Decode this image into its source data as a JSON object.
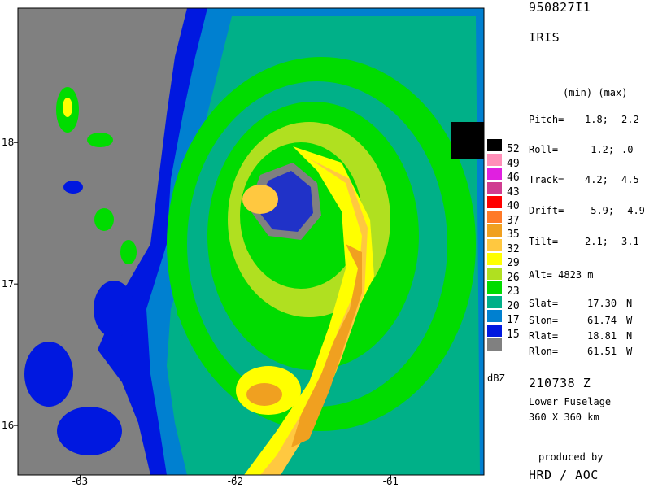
{
  "header": {
    "flight_id": "950827I1",
    "storm_name": "IRIS",
    "minmax_header": "(min) (max)"
  },
  "params": [
    {
      "label": "Pitch=",
      "min": "1.8;",
      "max": "2.2"
    },
    {
      "label": "Roll=",
      "min": "-1.2;",
      "max": ".0"
    },
    {
      "label": "Track=",
      "min": "4.2;",
      "max": "4.5"
    },
    {
      "label": "Drift=",
      "min": "-5.9;",
      "max": "-4.9"
    },
    {
      "label": "Tilt=",
      "min": "2.1;",
      "max": "3.1"
    }
  ],
  "altitude": {
    "label": "Alt=",
    "value": "4823 m"
  },
  "coords": [
    {
      "label": "Slat=",
      "value": "17.30",
      "unit": "N"
    },
    {
      "label": "Slon=",
      "value": "61.74",
      "unit": "W"
    },
    {
      "label": "Rlat=",
      "value": "18.81",
      "unit": "N"
    },
    {
      "label": "Rlon=",
      "value": "61.51",
      "unit": "W"
    }
  ],
  "time": "210738 Z",
  "radar": "Lower Fuselage",
  "extent": "360 X 360 km",
  "credit": {
    "line1": "produced by",
    "line2": "HRD / AOC"
  },
  "legend": {
    "unit": "dBZ",
    "levels": [
      {
        "label": "52",
        "color": "#000000"
      },
      {
        "label": "49",
        "color": "#ff8fb8"
      },
      {
        "label": "46",
        "color": "#e020e0"
      },
      {
        "label": "43",
        "color": "#d03c90"
      },
      {
        "label": "40",
        "color": "#ff0000"
      },
      {
        "label": "37",
        "color": "#ff7a28"
      },
      {
        "label": "35",
        "color": "#f0a020"
      },
      {
        "label": "32",
        "color": "#ffc840"
      },
      {
        "label": "29",
        "color": "#ffff00"
      },
      {
        "label": "26",
        "color": "#b0e020"
      },
      {
        "label": "23",
        "color": "#00dc00"
      },
      {
        "label": "20",
        "color": "#00b088"
      },
      {
        "label": "17",
        "color": "#0080d0"
      },
      {
        "label": "15",
        "color": "#0018e0"
      },
      {
        "label": "",
        "color": "#808080"
      }
    ]
  },
  "map": {
    "x_ticks": [
      {
        "label": "-63",
        "value": -63
      },
      {
        "label": "-62",
        "value": -62
      },
      {
        "label": "-61",
        "value": -61
      }
    ],
    "y_ticks": [
      {
        "label": "18",
        "value": 18
      },
      {
        "label": "17",
        "value": 17
      },
      {
        "label": "16",
        "value": 16
      }
    ],
    "lon_range": [
      -63.4,
      -60.4
    ],
    "lat_range": [
      15.65,
      18.95
    ],
    "land_color": "#808080",
    "echo_colors": {
      "weak": "#0018e0",
      "light": "#0080d0",
      "moderate": "#00b088",
      "green": "#00dc00",
      "lime": "#b0e020",
      "yellow": "#ffff00",
      "gold": "#ffc840",
      "orange": "#f0a020"
    }
  }
}
